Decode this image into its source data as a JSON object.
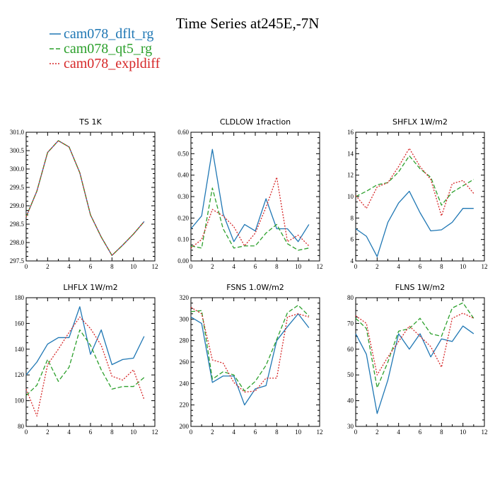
{
  "figure": {
    "title": "Time Series at245E,-7N"
  },
  "legend": [
    {
      "name": "cam078_dflt_rg",
      "color": "#1f77b4",
      "dash": "solid"
    },
    {
      "name": "cam078_qt5_rg",
      "color": "#2ca02c",
      "dash": "dashed"
    },
    {
      "name": "cam078_expldiff",
      "color": "#d62728",
      "dash": "dotted"
    }
  ],
  "chart_data": [
    {
      "type": "line",
      "title": "TS   1K",
      "x": [
        0,
        1,
        2,
        3,
        4,
        5,
        6,
        7,
        8,
        9,
        10,
        11
      ],
      "xlim": [
        0,
        12
      ],
      "xticks": [
        0,
        2,
        4,
        6,
        8,
        10,
        12
      ],
      "ylim": [
        297.5,
        301.0
      ],
      "yticks": [
        297.5,
        298.0,
        298.5,
        299.0,
        299.5,
        300.0,
        300.5,
        301.0
      ],
      "ytick_labels": [
        "297.5",
        "298.0",
        "298.5",
        "299.0",
        "299.5",
        "300.0",
        "300.5",
        "301.0"
      ],
      "series": [
        {
          "name": "cam078_dflt_rg",
          "values": [
            298.7,
            299.4,
            300.45,
            300.77,
            300.6,
            299.9,
            298.75,
            298.15,
            297.65,
            297.93,
            298.23,
            298.57
          ]
        },
        {
          "name": "cam078_qt5_rg",
          "values": [
            298.7,
            299.4,
            300.45,
            300.77,
            300.6,
            299.9,
            298.75,
            298.15,
            297.65,
            297.93,
            298.23,
            298.57
          ]
        },
        {
          "name": "cam078_expldiff",
          "values": [
            298.7,
            299.4,
            300.45,
            300.77,
            300.6,
            299.9,
            298.75,
            298.15,
            297.65,
            297.93,
            298.23,
            298.57
          ]
        }
      ]
    },
    {
      "type": "line",
      "title": "CLDLOW   1fraction",
      "x": [
        0,
        1,
        2,
        3,
        4,
        5,
        6,
        7,
        8,
        9,
        10,
        11
      ],
      "xlim": [
        0,
        12
      ],
      "xticks": [
        0,
        2,
        4,
        6,
        8,
        10,
        12
      ],
      "ylim": [
        0,
        0.6
      ],
      "yticks": [
        0,
        0.1,
        0.2,
        0.3,
        0.4,
        0.5,
        0.6
      ],
      "ytick_labels": [
        "0.00",
        "0.10",
        "0.20",
        "0.30",
        "0.40",
        "0.50",
        "0.60"
      ],
      "series": [
        {
          "name": "cam078_dflt_rg",
          "values": [
            0.15,
            0.21,
            0.52,
            0.22,
            0.09,
            0.17,
            0.14,
            0.29,
            0.15,
            0.15,
            0.09,
            0.17
          ]
        },
        {
          "name": "cam078_qt5_rg",
          "values": [
            0.07,
            0.06,
            0.34,
            0.15,
            0.06,
            0.07,
            0.07,
            0.13,
            0.17,
            0.08,
            0.05,
            0.06
          ]
        },
        {
          "name": "cam078_expldiff",
          "values": [
            0.06,
            0.1,
            0.24,
            0.21,
            0.16,
            0.07,
            0.13,
            0.25,
            0.39,
            0.09,
            0.12,
            0.07
          ]
        }
      ]
    },
    {
      "type": "line",
      "title": "SHFLX   1W/m2",
      "x": [
        0,
        1,
        2,
        3,
        4,
        5,
        6,
        7,
        8,
        9,
        10,
        11
      ],
      "xlim": [
        0,
        12
      ],
      "xticks": [
        0,
        2,
        4,
        6,
        8,
        10,
        12
      ],
      "ylim": [
        4,
        16
      ],
      "yticks": [
        4,
        6,
        8,
        10,
        12,
        14,
        16
      ],
      "ytick_labels": [
        "4",
        "6",
        "8",
        "10",
        "12",
        "14",
        "16"
      ],
      "series": [
        {
          "name": "cam078_dflt_rg",
          "values": [
            7.0,
            6.3,
            4.4,
            7.6,
            9.4,
            10.5,
            8.5,
            6.8,
            6.9,
            7.6,
            8.9,
            8.9
          ]
        },
        {
          "name": "cam078_qt5_rg",
          "values": [
            10.0,
            10.5,
            11.1,
            11.3,
            12.3,
            13.8,
            12.6,
            11.8,
            9.2,
            10.4,
            11.0,
            11.6
          ]
        },
        {
          "name": "cam078_expldiff",
          "values": [
            10.1,
            8.9,
            10.9,
            11.3,
            12.8,
            14.5,
            12.8,
            11.6,
            8.2,
            11.2,
            11.5,
            10.3
          ]
        }
      ]
    },
    {
      "type": "line",
      "title": "LHFLX   1W/m2",
      "x": [
        0,
        1,
        2,
        3,
        4,
        5,
        6,
        7,
        8,
        9,
        10,
        11
      ],
      "xlim": [
        0,
        12
      ],
      "xticks": [
        0,
        2,
        4,
        6,
        8,
        10,
        12
      ],
      "ylim": [
        80,
        180
      ],
      "yticks": [
        80,
        100,
        120,
        140,
        160,
        180
      ],
      "ytick_labels": [
        "80",
        "100",
        "120",
        "140",
        "160",
        "180"
      ],
      "series": [
        {
          "name": "cam078_dflt_rg",
          "values": [
            120,
            130,
            144,
            149,
            149,
            173,
            136,
            155,
            128,
            132,
            133,
            150
          ]
        },
        {
          "name": "cam078_qt5_rg",
          "values": [
            104,
            112,
            132,
            115,
            126,
            155,
            143,
            124,
            109,
            111,
            111,
            118
          ]
        },
        {
          "name": "cam078_expldiff",
          "values": [
            109,
            88,
            128,
            140,
            153,
            165,
            156,
            143,
            119,
            116,
            124,
            101
          ]
        }
      ]
    },
    {
      "type": "line",
      "title": "FSNS   1.0W/m2",
      "x": [
        0,
        1,
        2,
        3,
        4,
        5,
        6,
        7,
        8,
        9,
        10,
        11
      ],
      "xlim": [
        0,
        12
      ],
      "xticks": [
        0,
        2,
        4,
        6,
        8,
        10,
        12
      ],
      "ylim": [
        200,
        320
      ],
      "yticks": [
        200,
        220,
        240,
        260,
        280,
        300,
        320
      ],
      "ytick_labels": [
        "200",
        "220",
        "240",
        "260",
        "280",
        "300",
        "320"
      ],
      "series": [
        {
          "name": "cam078_dflt_rg",
          "values": [
            302,
            296,
            241,
            247,
            247,
            220,
            235,
            238,
            280,
            293,
            305,
            292
          ]
        },
        {
          "name": "cam078_qt5_rg",
          "values": [
            307,
            308,
            244,
            251,
            248,
            233,
            242,
            257,
            281,
            306,
            313,
            303
          ]
        },
        {
          "name": "cam078_expldiff",
          "values": [
            311,
            305,
            262,
            259,
            241,
            232,
            233,
            245,
            245,
            302,
            305,
            302
          ]
        }
      ]
    },
    {
      "type": "line",
      "title": "FLNS   1W/m2",
      "x": [
        0,
        1,
        2,
        3,
        4,
        5,
        6,
        7,
        8,
        9,
        10,
        11
      ],
      "xlim": [
        0,
        12
      ],
      "xticks": [
        0,
        2,
        4,
        6,
        8,
        10,
        12
      ],
      "ylim": [
        30,
        80
      ],
      "yticks": [
        30,
        40,
        50,
        60,
        70,
        80
      ],
      "ytick_labels": [
        "30",
        "40",
        "50",
        "60",
        "70",
        "80"
      ],
      "series": [
        {
          "name": "cam078_dflt_rg",
          "values": [
            66,
            58,
            35,
            48,
            66,
            60,
            66,
            57,
            64,
            63,
            69,
            66
          ]
        },
        {
          "name": "cam078_qt5_rg",
          "values": [
            72,
            68,
            45,
            55,
            67,
            68,
            72,
            66,
            65,
            76,
            78,
            72
          ]
        },
        {
          "name": "cam078_expldiff",
          "values": [
            73,
            70,
            50,
            57,
            63,
            69,
            65,
            61,
            53,
            72,
            74,
            72
          ]
        }
      ]
    }
  ]
}
